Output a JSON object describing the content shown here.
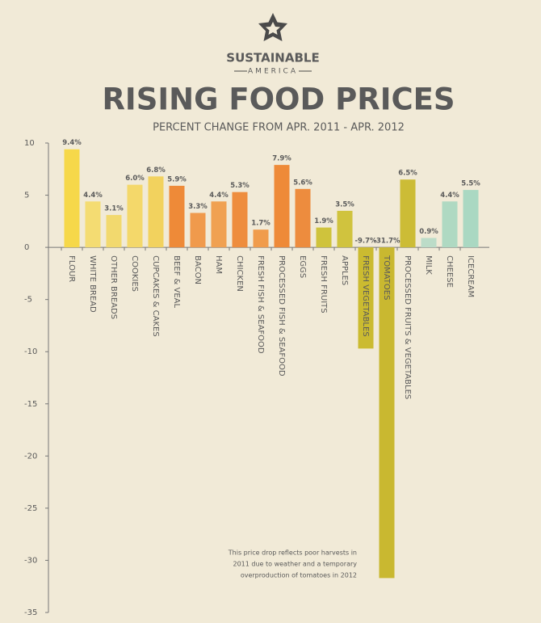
{
  "brand": {
    "name": "SUSTAINABLE",
    "sub": "AMERICA"
  },
  "chart_data": {
    "type": "bar",
    "title": "RISING FOOD PRICES",
    "subtitle": "PERCENT CHANGE FROM APR. 2011 - APR. 2012",
    "categories": [
      "FLOUR",
      "WHITE BREAD",
      "OTHER BREADS",
      "COOKIES",
      "CUPCAKES & CAKES",
      "BEEF & VEAL",
      "BACON",
      "HAM",
      "CHICKEN",
      "FRESH FISH & SEAFOOD",
      "PROCESSED FISH & SEAFOOD",
      "EGGS",
      "FRESH FRUITS",
      "APPLES",
      "FRESH VEGETABLES",
      "TOMATOES",
      "PROCESSED FRUITS & VEGETABLES",
      "MILK",
      "CHEESE",
      "ICECREAM"
    ],
    "values": [
      9.4,
      4.4,
      3.1,
      6.0,
      6.8,
      5.9,
      3.3,
      4.4,
      5.3,
      1.7,
      7.9,
      5.6,
      1.9,
      3.5,
      -9.7,
      -31.7,
      6.5,
      0.9,
      4.4,
      5.5
    ],
    "value_labels": [
      "9.4%",
      "4.4%",
      "3.1%",
      "6.0%",
      "6.8%",
      "5.9%",
      "3.3%",
      "4.4%",
      "5.3%",
      "1.7%",
      "7.9%",
      "5.6%",
      "1.9%",
      "3.5%",
      "-9.7%",
      "-31.7%",
      "6.5%",
      "0.9%",
      "4.4%",
      "5.5%"
    ],
    "colors": [
      "#f6d84a",
      "#f4dc72",
      "#f2d96e",
      "#f4d86a",
      "#f2d25e",
      "#ee8a38",
      "#f09a4c",
      "#f0a152",
      "#ee8d3e",
      "#f09c4c",
      "#ee8a38",
      "#ed8c3e",
      "#cfc33c",
      "#d0c33e",
      "#cbbb30",
      "#c9b830",
      "#ccbc36",
      "#bcdcc8",
      "#afd9c2",
      "#aad8c2"
    ],
    "ylim": [
      -35,
      10
    ],
    "yticks": [
      10,
      5,
      0,
      -5,
      -10,
      -15,
      -20,
      -25,
      -30,
      -35
    ],
    "annotation": [
      "This price drop reflects poor harvests in",
      "2011 due to weather and a temporary",
      "overproduction of tomatoes in 2012"
    ]
  }
}
